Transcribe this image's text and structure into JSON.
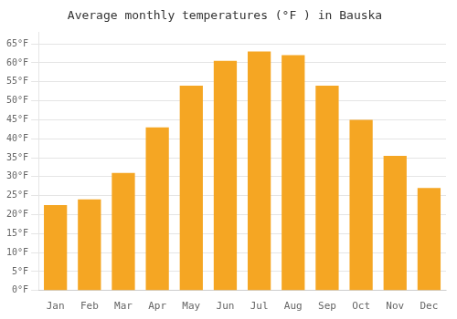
{
  "chart_data": {
    "type": "bar",
    "title": "Average monthly temperatures (°F ) in Bauska",
    "categories": [
      "Jan",
      "Feb",
      "Mar",
      "Apr",
      "May",
      "Jun",
      "Jul",
      "Aug",
      "Sep",
      "Oct",
      "Nov",
      "Dec"
    ],
    "values": [
      22.5,
      24.0,
      31.0,
      43.0,
      54.0,
      60.5,
      63.0,
      62.0,
      54.0,
      45.0,
      35.5,
      27.0
    ],
    "color": "#F5A623",
    "ylim": [
      0,
      68
    ],
    "yticks": [
      {
        "value": 0,
        "label": "0°F"
      },
      {
        "value": 5,
        "label": "5°F"
      },
      {
        "value": 10,
        "label": "10°F"
      },
      {
        "value": 15,
        "label": "15°F"
      },
      {
        "value": 20,
        "label": "20°F"
      },
      {
        "value": 25,
        "label": "25°F"
      },
      {
        "value": 30,
        "label": "30°F"
      },
      {
        "value": 35,
        "label": "35°F"
      },
      {
        "value": 40,
        "label": "40°F"
      },
      {
        "value": 45,
        "label": "45°F"
      },
      {
        "value": 50,
        "label": "50°F"
      },
      {
        "value": 55,
        "label": "55°F"
      },
      {
        "value": 60,
        "label": "60°F"
      },
      {
        "value": 65,
        "label": "65°F"
      }
    ],
    "grid": true
  }
}
